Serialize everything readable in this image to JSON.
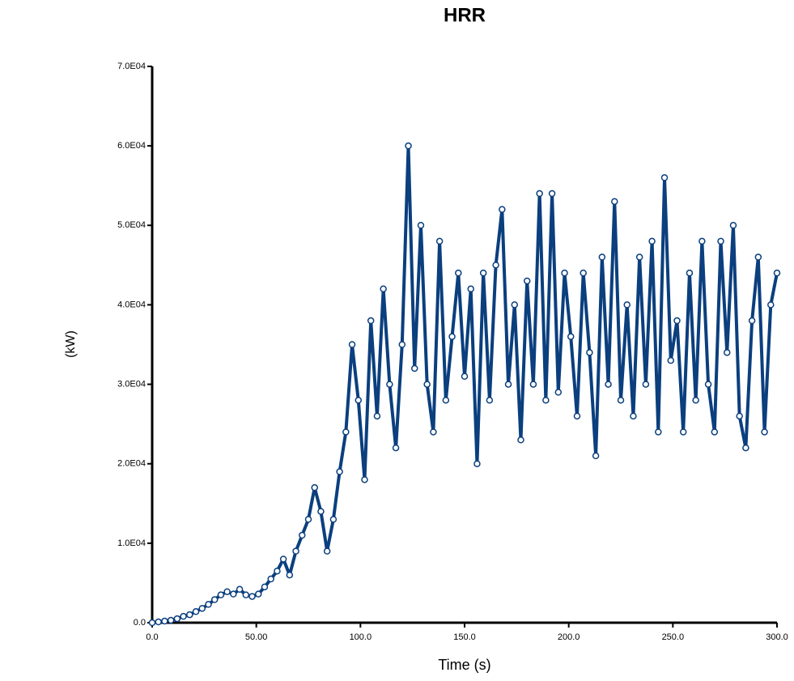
{
  "chart_data": {
    "type": "line",
    "title": "HRR",
    "xlabel": "Time (s)",
    "ylabel": "(kW)",
    "x": [
      0,
      3,
      6,
      9,
      12,
      15,
      18,
      21,
      24,
      27,
      30,
      33,
      36,
      39,
      42,
      45,
      48,
      51,
      54,
      57,
      60,
      63,
      66,
      69,
      72,
      75,
      78,
      81,
      84,
      87,
      90,
      93,
      96,
      99,
      102,
      105,
      108,
      111,
      114,
      117,
      120,
      123,
      126,
      129,
      132,
      135,
      138,
      141,
      144,
      147,
      150,
      153,
      156,
      159,
      162,
      165,
      168,
      171,
      174,
      177,
      180,
      183,
      186,
      189,
      192,
      195,
      198,
      201,
      204,
      207,
      210,
      213,
      216,
      219,
      222,
      225,
      228,
      231,
      234,
      237,
      240,
      243,
      246,
      249,
      252,
      255,
      258,
      261,
      264,
      267,
      270,
      273,
      276,
      279,
      282,
      285,
      288,
      291,
      294,
      297,
      300
    ],
    "series": [
      {
        "name": "HRR",
        "color": "#0b3f7e",
        "values": [
          0,
          100,
          200,
          300,
          500,
          800,
          1000,
          1400,
          1800,
          2300,
          2900,
          3500,
          3900,
          3600,
          4200,
          3500,
          3300,
          3600,
          4500,
          5500,
          6500,
          8000,
          6000,
          9000,
          11000,
          13000,
          17000,
          14000,
          9000,
          13000,
          19000,
          24000,
          35000,
          28000,
          18000,
          38000,
          26000,
          42000,
          30000,
          22000,
          35000,
          60000,
          32000,
          50000,
          30000,
          24000,
          48000,
          28000,
          36000,
          44000,
          31000,
          42000,
          20000,
          44000,
          28000,
          45000,
          52000,
          30000,
          40000,
          23000,
          43000,
          30000,
          54000,
          28000,
          54000,
          29000,
          44000,
          36000,
          26000,
          44000,
          34000,
          21000,
          46000,
          30000,
          53000,
          28000,
          40000,
          26000,
          46000,
          30000,
          48000,
          24000,
          56000,
          33000,
          38000,
          24000,
          44000,
          28000,
          48000,
          30000,
          24000,
          48000,
          34000,
          50000,
          26000,
          22000,
          38000,
          46000,
          24000,
          40000,
          44000
        ]
      }
    ],
    "xlim": [
      0,
      300
    ],
    "xticks": [
      {
        "value": 0,
        "label": "0.0"
      },
      {
        "value": 50,
        "label": "50.00"
      },
      {
        "value": 100,
        "label": "100.0"
      },
      {
        "value": 150,
        "label": "150.0"
      },
      {
        "value": 200,
        "label": "200.0"
      },
      {
        "value": 250,
        "label": "250.0"
      },
      {
        "value": 300,
        "label": "300.0"
      }
    ],
    "ylim": [
      0,
      70000
    ],
    "yticks": [
      {
        "value": 0,
        "label": "0.0"
      },
      {
        "value": 10000,
        "label": "1.0E04"
      },
      {
        "value": 20000,
        "label": "2.0E04"
      },
      {
        "value": 30000,
        "label": "3.0E04"
      },
      {
        "value": 40000,
        "label": "4.0E04"
      },
      {
        "value": 50000,
        "label": "5.0E04"
      },
      {
        "value": 60000,
        "label": "6.0E04"
      },
      {
        "value": 70000,
        "label": "7.0E04"
      }
    ]
  }
}
